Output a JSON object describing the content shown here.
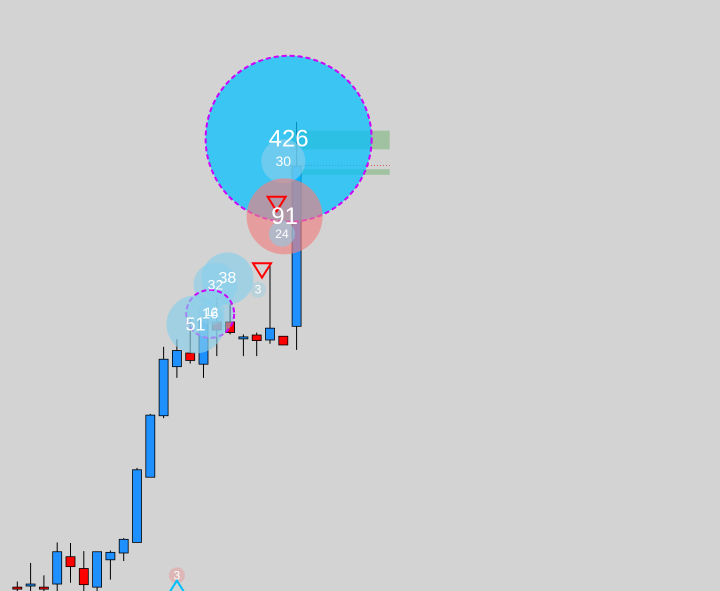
{
  "chart_data": {
    "type": "candlestick",
    "background": "#d3d3d3",
    "colors": {
      "up": "#1e90ff",
      "down": "#ff0000",
      "wick": "#000000",
      "bubble_buy": "#00bfff",
      "bubble_buy_light": "#87ceeb",
      "bubble_sell": "#f08080",
      "bubble_outline": "#cc00ff",
      "zone": "#8fbc8f",
      "level_line": "#cd5c5c",
      "marker_sell": "#ff0000",
      "marker_buy": "#00bfff"
    },
    "ylim": [
      100,
      180
    ],
    "xlim": [
      0,
      29
    ],
    "candles": [
      {
        "i": 1,
        "o": 100.3,
        "h": 101.2,
        "l": 99.5,
        "c": 100.0
      },
      {
        "i": 2,
        "o": 100.5,
        "h": 104.2,
        "l": 99.5,
        "c": 100.8
      },
      {
        "i": 3,
        "o": 100.3,
        "h": 102.2,
        "l": 99.5,
        "c": 100.0
      },
      {
        "i": 4,
        "o": 100.8,
        "h": 107.5,
        "l": 99.5,
        "c": 106.0
      },
      {
        "i": 5,
        "o": 105.2,
        "h": 107.4,
        "l": 101.0,
        "c": 103.6
      },
      {
        "i": 6,
        "o": 103.3,
        "h": 106.1,
        "l": 99.5,
        "c": 100.7
      },
      {
        "i": 7,
        "o": 100.3,
        "h": 106.0,
        "l": 99.5,
        "c": 106.0
      },
      {
        "i": 8,
        "o": 104.7,
        "h": 106.2,
        "l": 101.5,
        "c": 105.9
      },
      {
        "i": 9,
        "o": 105.8,
        "h": 108.2,
        "l": 104.5,
        "c": 108.0
      },
      {
        "i": 10,
        "o": 107.5,
        "h": 119.5,
        "l": 107.5,
        "c": 119.2
      },
      {
        "i": 11,
        "o": 118.0,
        "h": 128.2,
        "l": 118.0,
        "c": 128.0
      },
      {
        "i": 12,
        "o": 127.9,
        "h": 139.0,
        "l": 127.5,
        "c": 137.0
      },
      {
        "i": 13,
        "o": 135.8,
        "h": 140.2,
        "l": 134.0,
        "c": 138.4
      },
      {
        "i": 14,
        "o": 138.0,
        "h": 143.5,
        "l": 136.3,
        "c": 136.8
      },
      {
        "i": 15,
        "o": 136.2,
        "h": 144.0,
        "l": 134.0,
        "c": 143.5
      },
      {
        "i": 16,
        "o": 143.0,
        "h": 147.0,
        "l": 137.5,
        "c": 141.7
      },
      {
        "i": 17,
        "o": 143.0,
        "h": 146.0,
        "l": 141.0,
        "c": 141.3
      },
      {
        "i": 18,
        "o": 140.5,
        "h": 141.0,
        "l": 137.5,
        "c": 140.6
      },
      {
        "i": 19,
        "o": 140.9,
        "h": 141.3,
        "l": 137.5,
        "c": 140.0
      },
      {
        "i": 20,
        "o": 140.1,
        "h": 152.5,
        "l": 139.5,
        "c": 142.0
      },
      {
        "i": 21,
        "o": 140.7,
        "h": 140.0,
        "l": 139.3,
        "c": 139.3
      },
      {
        "i": 22,
        "o": 142.3,
        "h": 175.2,
        "l": 138.5,
        "c": 168.1
      }
    ],
    "zones": [
      {
        "x_start": 21.5,
        "x_end": 29,
        "y_low": 170.8,
        "y_high": 173.8,
        "opacity": 0.75
      },
      {
        "x_start": 21.5,
        "x_end": 29,
        "y_low": 166.7,
        "y_high": 167.6,
        "opacity": 0.75
      }
    ],
    "level_lines": [
      {
        "x_start": 21.5,
        "x_end": 29,
        "y": 168.2
      }
    ],
    "bubbles": [
      {
        "label": "426",
        "x": 21.4,
        "y": 172.5,
        "size": 83,
        "fill": "#00bfff",
        "opacity": 0.72,
        "outline": true
      },
      {
        "label": "30",
        "x": 21.0,
        "y": 168.9,
        "size": 22,
        "fill": "#87ceeb",
        "opacity": 0.65,
        "outline": false
      },
      {
        "label": "91",
        "x": 21.1,
        "y": 160.0,
        "size": 38,
        "fill": "#f08080",
        "opacity": 0.65,
        "outline": false
      },
      {
        "label": "24",
        "x": 20.9,
        "y": 157.2,
        "size": 13,
        "fill": "#87ceeb",
        "opacity": 0.55,
        "outline": false
      },
      {
        "label": "38",
        "x": 16.8,
        "y": 150.0,
        "size": 26,
        "fill": "#87ceeb",
        "opacity": 0.65,
        "outline": false
      },
      {
        "label": "32",
        "x": 15.9,
        "y": 149.0,
        "size": 22,
        "fill": "#87ceeb",
        "opacity": 0.6,
        "outline": false
      },
      {
        "label": "16",
        "x": 15.5,
        "y": 144.3,
        "size": 24,
        "fill": "#87ceeb",
        "opacity": 0.55,
        "outline": true
      },
      {
        "label": "12",
        "x": 15.6,
        "y": 144.6,
        "size": 13,
        "fill": "#87ceeb",
        "opacity": 0.55,
        "outline": false
      },
      {
        "label": "51",
        "x": 14.4,
        "y": 142.6,
        "size": 29,
        "fill": "#87ceeb",
        "opacity": 0.65,
        "outline": false
      },
      {
        "label": "3",
        "x": 19.1,
        "y": 148.2,
        "size": 8,
        "fill": "#87ceeb",
        "opacity": 0.35,
        "outline": false
      },
      {
        "label": "3",
        "x": 13.0,
        "y": 102.2,
        "size": 8,
        "fill": "#f08080",
        "opacity": 0.35,
        "outline": false
      }
    ],
    "markers": [
      {
        "type": "triangle-down",
        "x": 20.5,
        "y": 162.0,
        "color": "#ff0000"
      },
      {
        "type": "triangle-down",
        "x": 19.4,
        "y": 151.3,
        "color": "#ff0000"
      },
      {
        "type": "triangle-up",
        "x": 13.0,
        "y": 100.2,
        "color": "#00bfff"
      }
    ]
  }
}
